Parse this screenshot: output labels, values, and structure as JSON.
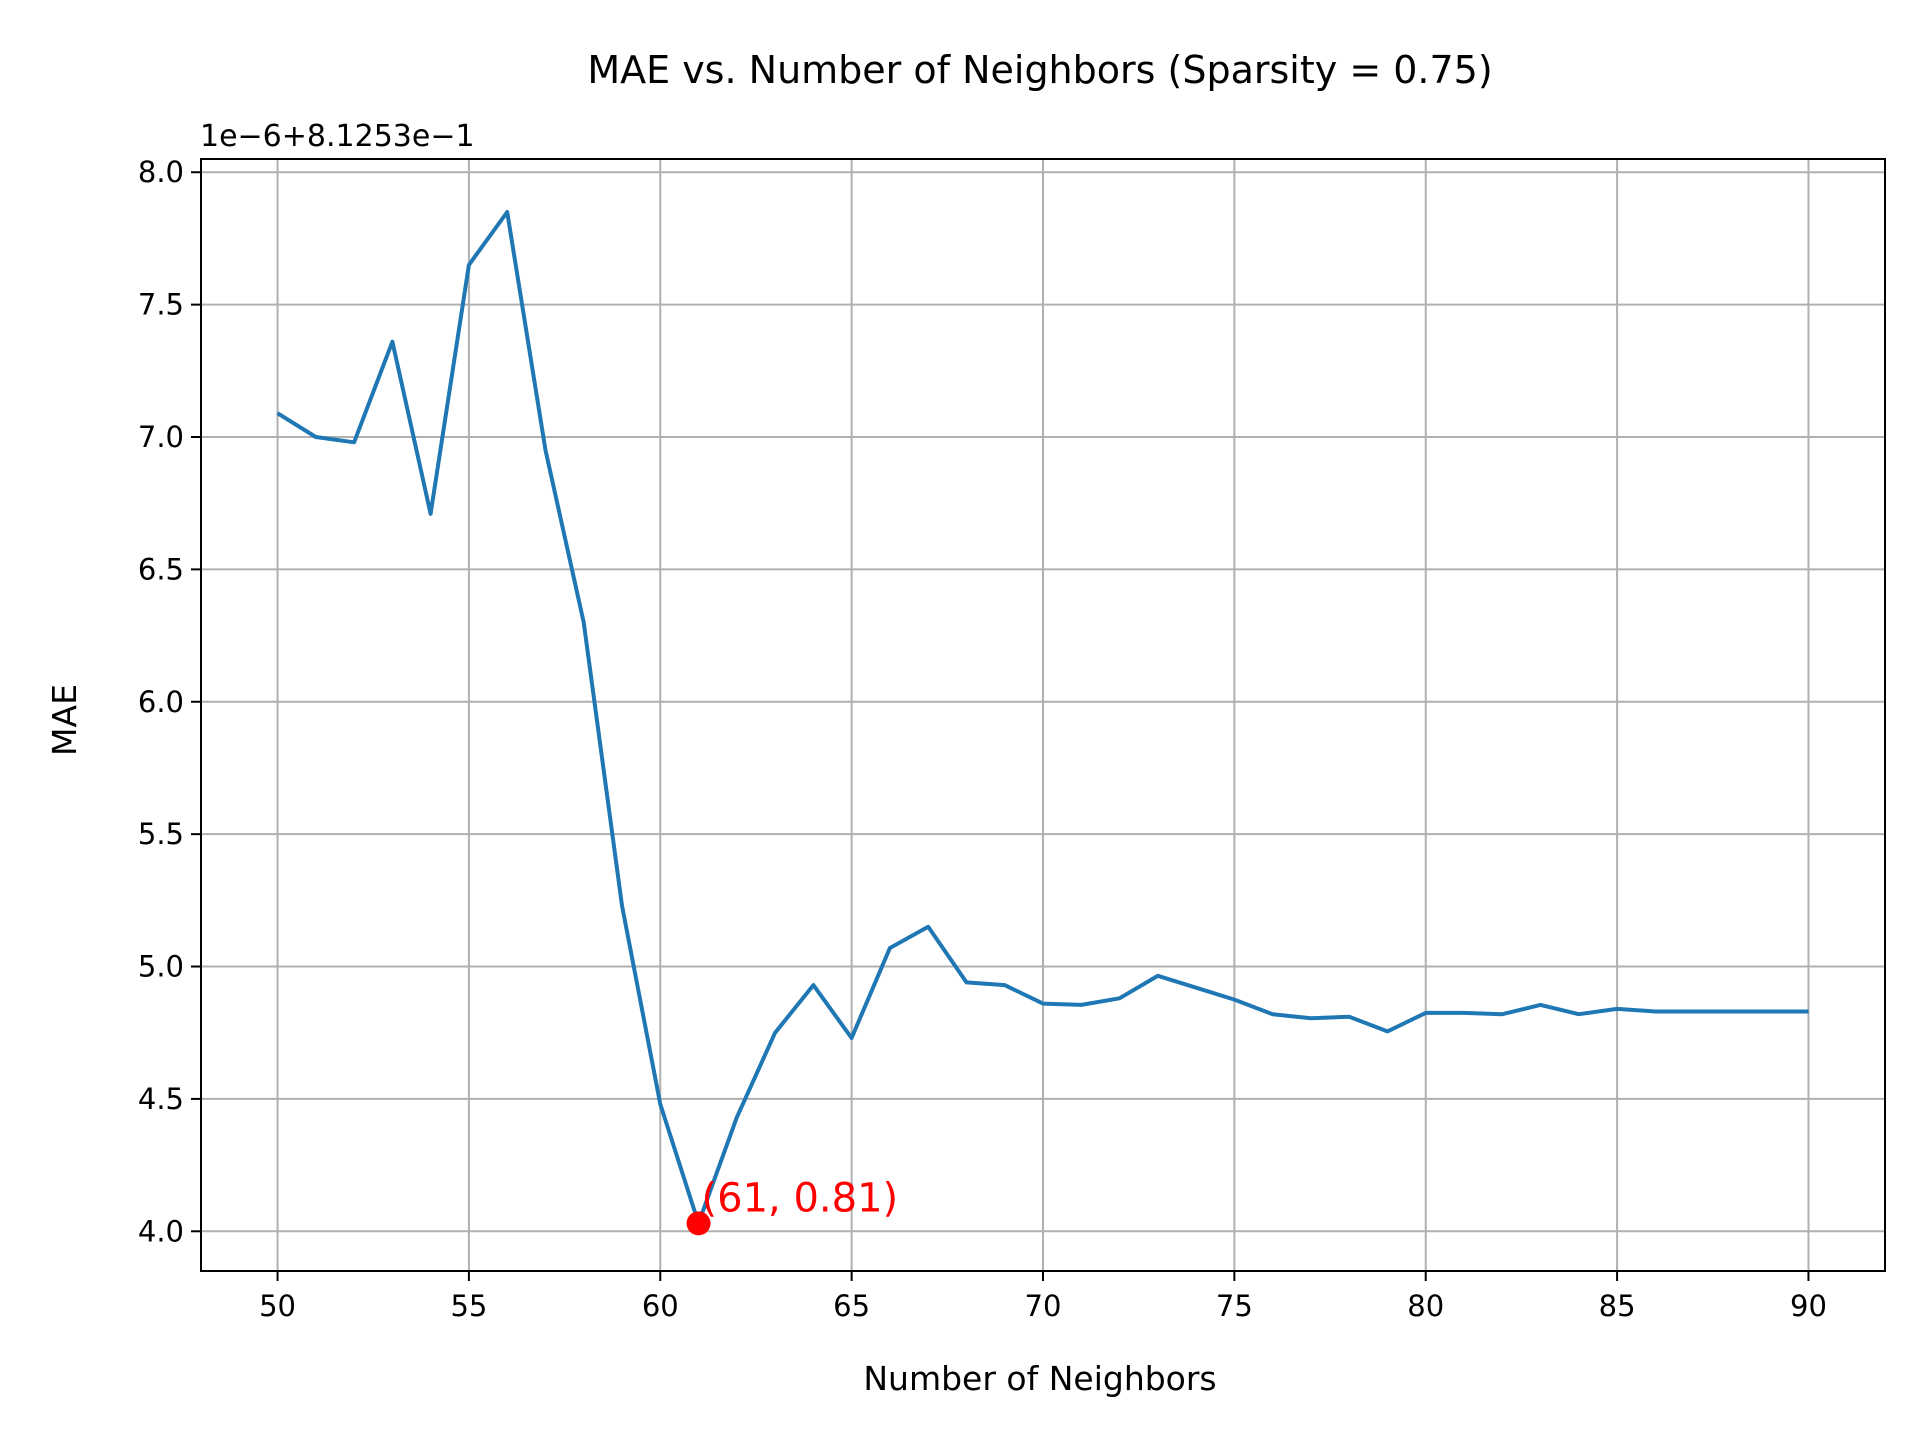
{
  "chart_data": {
    "type": "line",
    "title": "MAE vs. Number of Neighbors (Sparsity = 0.75)",
    "xlabel": "Number of Neighbors",
    "ylabel": "MAE",
    "offset_text": "1e−6+8.1253e−1",
    "y_offset": 0.81253,
    "y_scale": 1e-06,
    "xlim": [
      48,
      92
    ],
    "ylim": [
      3.85,
      8.05
    ],
    "x_ticks": [
      50,
      55,
      60,
      65,
      70,
      75,
      80,
      85,
      90
    ],
    "y_ticks": [
      4.0,
      4.5,
      5.0,
      5.5,
      6.0,
      6.5,
      7.0,
      7.5,
      8.0
    ],
    "grid": true,
    "line_color": "#1f77b4",
    "series": [
      {
        "x": [
          50,
          51,
          52,
          53,
          54,
          55,
          56,
          57,
          58,
          59,
          60,
          61,
          62,
          63,
          64,
          65,
          66,
          67,
          68,
          69,
          70,
          71,
          72,
          73,
          74,
          75,
          76,
          77,
          78,
          79,
          80,
          81,
          82,
          83,
          84,
          85,
          86,
          87,
          88,
          89,
          90
        ],
        "y": [
          7.09,
          7.0,
          6.98,
          7.36,
          6.71,
          7.65,
          7.85,
          6.95,
          6.3,
          5.23,
          4.48,
          4.03,
          4.43,
          4.75,
          4.93,
          4.73,
          5.07,
          5.15,
          4.94,
          4.93,
          4.86,
          4.855,
          4.88,
          4.965,
          4.92,
          4.875,
          4.82,
          4.805,
          4.81,
          4.755,
          4.825,
          4.825,
          4.82,
          4.855,
          4.82,
          4.84,
          4.83,
          4.83,
          4.83,
          4.83,
          4.83
        ]
      }
    ],
    "highlight": {
      "x": 61,
      "y": 4.03,
      "label": "(61, 0.81)",
      "color": "#ff0000"
    }
  }
}
